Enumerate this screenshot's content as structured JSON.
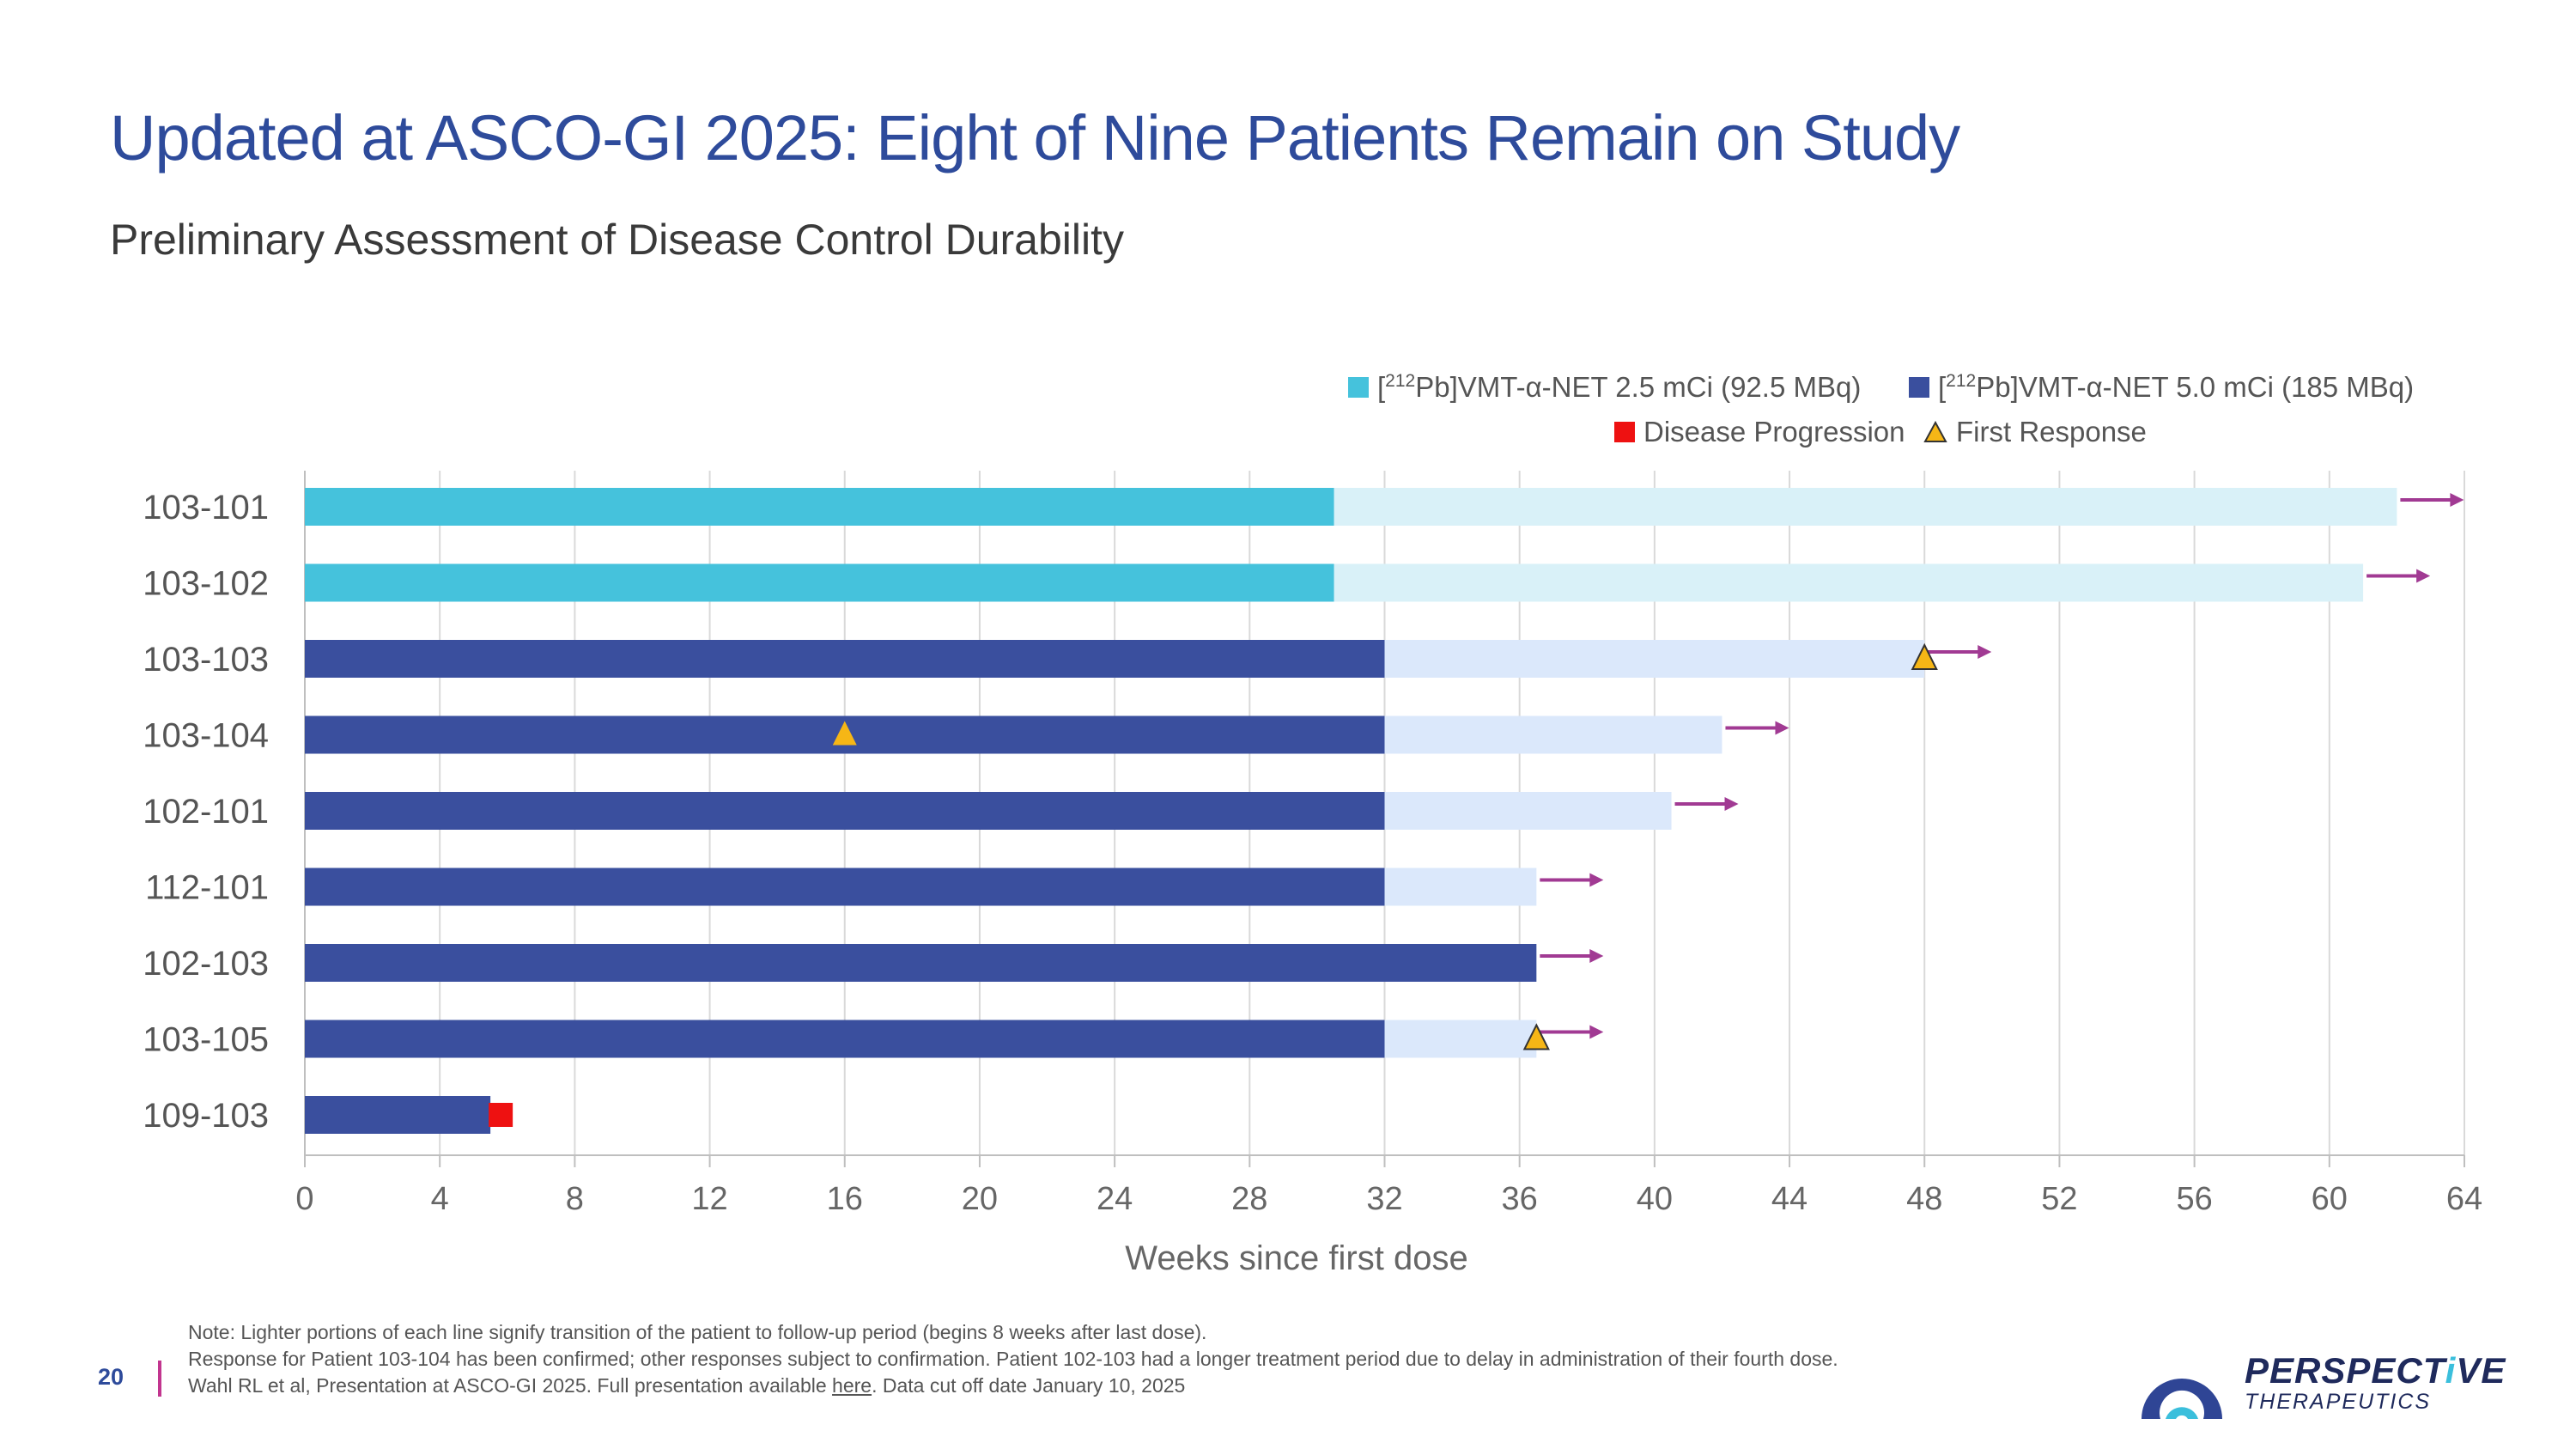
{
  "page": {
    "title": "Updated at ASCO-GI 2025: Eight of Nine Patients Remain on Study",
    "subtitle": "Preliminary Assessment of Disease Control Durability",
    "page_number": "20"
  },
  "legend": {
    "item1_prefix": "[",
    "item1_sup": "212",
    "item1_rest": "Pb]VMT-α-NET 2.5 mCi (92.5 MBq)",
    "item2_prefix": "[",
    "item2_sup": "212",
    "item2_rest": "Pb]VMT-α-NET 5.0 mCi (185 MBq)",
    "item3": "Disease Progression",
    "item4": "First Response"
  },
  "colors": {
    "low_dose": "#45c2dc",
    "low_dose_followup": "#d9f1f8",
    "high_dose": "#3a4f9e",
    "high_dose_followup": "#dbe8fb",
    "progression": "#ee1111",
    "response": "#f6b616",
    "ongoing_arrow": "#a13a93",
    "grid": "#d9d9d9",
    "axis_text": "#666666"
  },
  "chart_data": {
    "type": "bar",
    "orientation": "horizontal-swimmer",
    "xlabel": "Weeks since first dose",
    "xlim": [
      0,
      64
    ],
    "xticks": [
      0,
      4,
      8,
      12,
      16,
      20,
      24,
      28,
      32,
      36,
      40,
      44,
      48,
      52,
      56,
      60,
      64
    ],
    "xtick_labels": [
      "0",
      "4",
      "8",
      "12",
      "16",
      "20",
      "24",
      "28",
      "32",
      "36",
      "40",
      "44",
      "48",
      "52",
      "56",
      "60",
      "64"
    ],
    "legend_position": "top-right",
    "patients": [
      {
        "id": "103-101",
        "dose": "2.5 mCi",
        "treatment_end": 30.5,
        "followup_end": 62,
        "ongoing": true,
        "first_response": null,
        "progression": null
      },
      {
        "id": "103-102",
        "dose": "2.5 mCi",
        "treatment_end": 30.5,
        "followup_end": 61,
        "ongoing": true,
        "first_response": null,
        "progression": null
      },
      {
        "id": "103-103",
        "dose": "5.0 mCi",
        "treatment_end": 32,
        "followup_end": 48,
        "ongoing": true,
        "first_response": 48,
        "progression": null
      },
      {
        "id": "103-104",
        "dose": "5.0 mCi",
        "treatment_end": 32,
        "followup_end": 42,
        "ongoing": true,
        "first_response": 16,
        "progression": null
      },
      {
        "id": "102-101",
        "dose": "5.0 mCi",
        "treatment_end": 32,
        "followup_end": 40.5,
        "ongoing": true,
        "first_response": null,
        "progression": null
      },
      {
        "id": "112-101",
        "dose": "5.0 mCi",
        "treatment_end": 32,
        "followup_end": 36.5,
        "ongoing": true,
        "first_response": null,
        "progression": null
      },
      {
        "id": "102-103",
        "dose": "5.0 mCi",
        "treatment_end": 36.5,
        "followup_end": 36.5,
        "ongoing": true,
        "first_response": null,
        "progression": null
      },
      {
        "id": "103-105",
        "dose": "5.0 mCi",
        "treatment_end": 32,
        "followup_end": 36.5,
        "ongoing": true,
        "first_response": 36.5,
        "progression": null
      },
      {
        "id": "109-103",
        "dose": "5.0 mCi",
        "treatment_end": 5.5,
        "followup_end": 5.5,
        "ongoing": false,
        "first_response": null,
        "progression": 5.5
      }
    ]
  },
  "footer": {
    "line1": "Note: Lighter portions of each line signify transition of the patient to follow-up period (begins 8 weeks after last dose).",
    "line2": "Response for Patient 103-104 has been confirmed; other responses subject to confirmation. Patient 102-103 had a longer treatment period due to delay in administration of their fourth dose.",
    "line3_pre": "Wahl RL et al, Presentation at ASCO-GI 2025. Full presentation available ",
    "line3_link": "here",
    "line3_post": ". Data cut off date January 10, 2025"
  },
  "logo": {
    "name_part1": "PERSPECT",
    "name_part2": "i",
    "name_part3": "VE",
    "sub": "THERAPEUTICS"
  }
}
